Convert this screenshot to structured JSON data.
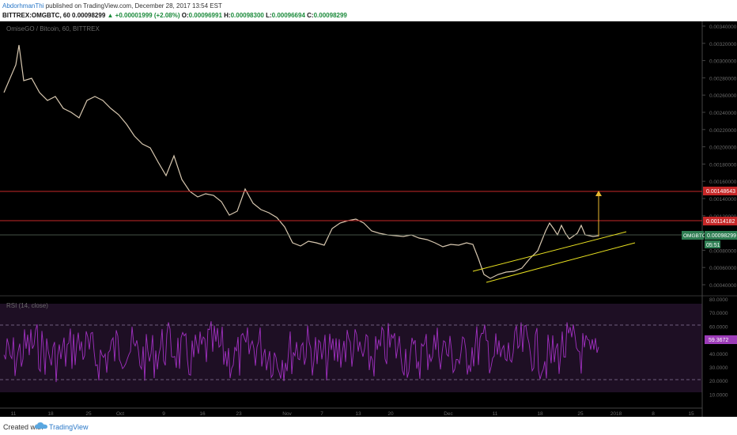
{
  "header": {
    "author": "AbdorhmanThi",
    "published": "published on TradingView.com, December 28, 2017 13:54 EST",
    "symbol": "BITTREX:OMGBTC, 60",
    "last": "0.00098299",
    "change": "▲ +0.00001999 (+2.08%)",
    "o_label": "O:",
    "o": "0.00096991",
    "h_label": "H:",
    "h": "0.00098300",
    "l_label": "L:",
    "l": "0.00096694",
    "c_label": "C:",
    "c": "0.00098299"
  },
  "price_pane": {
    "title": "OmiseGO / Bitcoin, 60, BITTREX",
    "ticks": [
      "0.00340000",
      "0.00320000",
      "0.00300000",
      "0.00280000",
      "0.00260000",
      "0.00240000",
      "0.00220000",
      "0.00200000",
      "0.00180000",
      "0.00160000",
      "0.00140000",
      "0.00120000",
      "0.00100000",
      "0.00080000",
      "0.00060000",
      "0.00040000"
    ],
    "resistance_1": "0.00148643",
    "resistance_2": "0.00114182",
    "symbol_tag": "OMGBTC",
    "last_price_tag": "0.00098299",
    "countdown_tag": "05:51"
  },
  "rsi_pane": {
    "title": "RSI (14, close)",
    "ticks": [
      "80.0000",
      "70.0000",
      "60.0000",
      "50.0000",
      "40.0000",
      "30.0000",
      "20.0000",
      "10.0000"
    ],
    "value_tag": "59.3672"
  },
  "time_axis": [
    "11",
    "18",
    "25",
    "Oct",
    "9",
    "16",
    "23",
    "Nov",
    "7",
    "13",
    "20",
    "Dec",
    "11",
    "18",
    "25",
    "2018",
    "8",
    "15"
  ],
  "footer": {
    "created": "Created with",
    "brand": "TradingView"
  },
  "colors": {
    "background": "#000000",
    "resistance_line": "#c62828",
    "trend_channel": "#e8e020",
    "rsi_line": "#a030c0",
    "rsi_band": "#1e0f24",
    "last_price_tag": "#2e7d52"
  }
}
